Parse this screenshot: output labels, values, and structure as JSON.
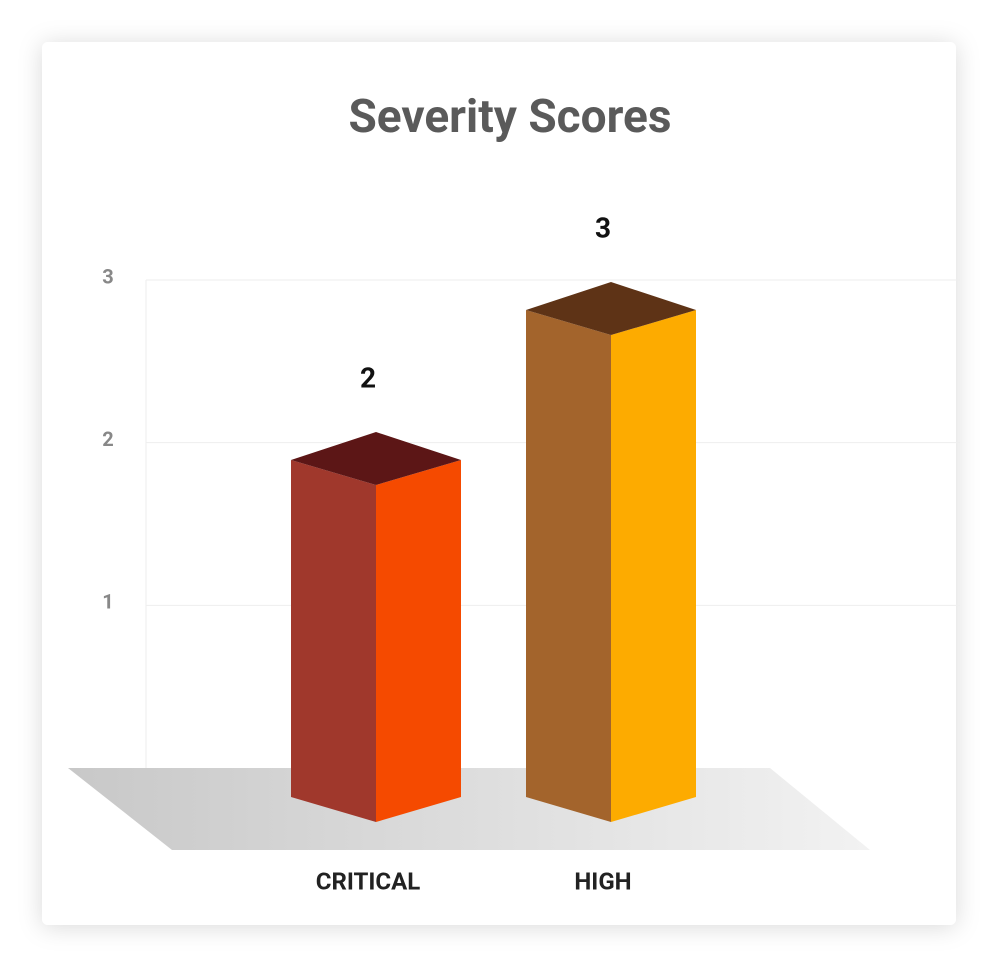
{
  "chart_data": {
    "type": "bar3d",
    "title": "Severity Scores",
    "categories": [
      "CRITICAL",
      "HIGH"
    ],
    "values": [
      2,
      3
    ],
    "colors": [
      "#f54a00",
      "#fdab00"
    ],
    "ylim": [
      0,
      3
    ],
    "yticks": [
      1,
      2,
      3
    ],
    "grid": true
  }
}
